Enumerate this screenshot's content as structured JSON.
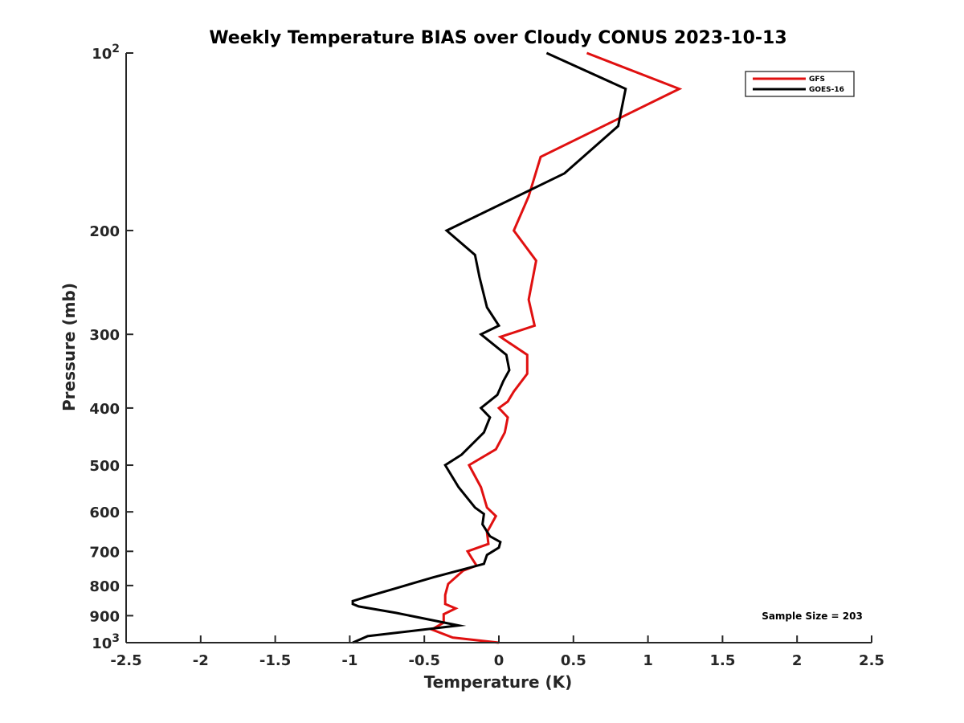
{
  "chart_data": {
    "type": "line",
    "title": "Weekly Temperature BIAS over Cloudy CONUS 2023-10-13",
    "xlabel": "Temperature (K)",
    "ylabel": "Pressure (mb)",
    "xlim": [
      -2.5,
      2.5
    ],
    "ylim": [
      1000,
      100
    ],
    "y_scale": "log",
    "y_reversed": true,
    "grid": false,
    "legend_position": "top-right",
    "x_ticks": [
      -2.5,
      -2,
      -1.5,
      -1,
      -0.5,
      0,
      0.5,
      1,
      1.5,
      2,
      2.5
    ],
    "x_tick_labels": [
      "-2.5",
      "-2",
      "-1.5",
      "-1",
      "-0.5",
      "0",
      "0.5",
      "1",
      "1.5",
      "2",
      "2.5"
    ],
    "y_ticks": [
      {
        "value": 100,
        "base": "10",
        "exp": "2"
      },
      {
        "value": 200,
        "label": "200"
      },
      {
        "value": 300,
        "label": "300"
      },
      {
        "value": 400,
        "label": "400"
      },
      {
        "value": 500,
        "label": "500"
      },
      {
        "value": 600,
        "label": "600"
      },
      {
        "value": 700,
        "label": "700"
      },
      {
        "value": 800,
        "label": "800"
      },
      {
        "value": 900,
        "label": "900"
      },
      {
        "value": 1000,
        "base": "10",
        "exp": "3"
      }
    ],
    "series": [
      {
        "name": "GFS",
        "color": "#e01010",
        "points": [
          [
            0.59,
            100
          ],
          [
            1.21,
            115
          ],
          [
            0.28,
            150
          ],
          [
            0.2,
            175
          ],
          [
            0.1,
            200
          ],
          [
            0.25,
            225
          ],
          [
            0.2,
            262
          ],
          [
            0.24,
            290
          ],
          [
            0.01,
            303
          ],
          [
            0.19,
            325
          ],
          [
            0.19,
            350
          ],
          [
            0.1,
            375
          ],
          [
            0.06,
            390
          ],
          [
            0.0,
            400
          ],
          [
            0.06,
            415
          ],
          [
            0.04,
            440
          ],
          [
            -0.02,
            470
          ],
          [
            -0.2,
            500
          ],
          [
            -0.12,
            545
          ],
          [
            -0.08,
            590
          ],
          [
            -0.02,
            610
          ],
          [
            -0.08,
            650
          ],
          [
            -0.07,
            680
          ],
          [
            -0.21,
            700
          ],
          [
            -0.18,
            720
          ],
          [
            -0.15,
            740
          ],
          [
            -0.24,
            755
          ],
          [
            -0.34,
            795
          ],
          [
            -0.36,
            830
          ],
          [
            -0.36,
            860
          ],
          [
            -0.29,
            875
          ],
          [
            -0.37,
            895
          ],
          [
            -0.37,
            925
          ],
          [
            -0.45,
            950
          ],
          [
            -0.31,
            980
          ],
          [
            0.0,
            1000
          ]
        ]
      },
      {
        "name": "GOES-16",
        "color": "#000000",
        "points": [
          [
            0.32,
            100
          ],
          [
            0.85,
            115
          ],
          [
            0.8,
            133
          ],
          [
            0.44,
            160
          ],
          [
            -0.35,
            200
          ],
          [
            -0.16,
            220
          ],
          [
            -0.13,
            240
          ],
          [
            -0.08,
            270
          ],
          [
            0.0,
            290
          ],
          [
            -0.12,
            300
          ],
          [
            0.05,
            325
          ],
          [
            0.07,
            345
          ],
          [
            0.03,
            360
          ],
          [
            -0.01,
            380
          ],
          [
            -0.12,
            400
          ],
          [
            -0.06,
            415
          ],
          [
            -0.1,
            440
          ],
          [
            -0.25,
            480
          ],
          [
            -0.36,
            500
          ],
          [
            -0.27,
            545
          ],
          [
            -0.16,
            590
          ],
          [
            -0.1,
            605
          ],
          [
            -0.11,
            630
          ],
          [
            -0.06,
            660
          ],
          [
            0.01,
            675
          ],
          [
            0.0,
            690
          ],
          [
            -0.08,
            710
          ],
          [
            -0.1,
            735
          ],
          [
            -0.44,
            775
          ],
          [
            -0.7,
            810
          ],
          [
            -0.88,
            835
          ],
          [
            -0.98,
            850
          ],
          [
            -0.98,
            860
          ],
          [
            -0.94,
            868
          ],
          [
            -0.69,
            890
          ],
          [
            -0.27,
            935
          ],
          [
            -0.38,
            942
          ],
          [
            -0.88,
            975
          ],
          [
            -0.98,
            1000
          ]
        ]
      }
    ],
    "annotations": [
      "Sample Size = 203"
    ]
  }
}
